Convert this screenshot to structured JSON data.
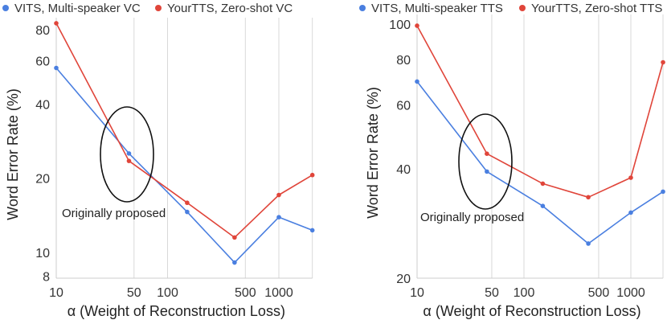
{
  "chart_data": [
    {
      "type": "line",
      "xscale": "log",
      "yscale": "log",
      "xlabel": "α (Weight of Reconstruction Loss)",
      "ylabel": "Word Error Rate (%)",
      "x_ticks": [
        "10",
        "50",
        "100",
        "500",
        "1000"
      ],
      "y_ticks": [
        "8",
        "10",
        "20",
        "40",
        "60",
        "80"
      ],
      "xlim": [
        10,
        2000
      ],
      "ylim": [
        8,
        87
      ],
      "grid": true,
      "legend_position": "top",
      "series": [
        {
          "name": "VITS, Multi-speaker VC",
          "color": "#4a7fe0",
          "x": [
            10,
            45,
            150,
            400,
            1000,
            2000
          ],
          "y": [
            56,
            25.2,
            14.6,
            9.1,
            13.9,
            12.3
          ]
        },
        {
          "name": "YourTTS, Zero-shot VC",
          "color": "#e0453a",
          "x": [
            10,
            45,
            150,
            400,
            1000,
            2000
          ],
          "y": [
            85,
            23.5,
            15.9,
            11.5,
            17.1,
            20.6
          ]
        }
      ],
      "annotations": [
        {
          "text": "Originally proposed",
          "x": 45
        }
      ]
    },
    {
      "type": "line",
      "xscale": "log",
      "yscale": "log",
      "xlabel": "α (Weight of Reconstruction Loss)",
      "ylabel": "Word Error Rate (%)",
      "x_ticks": [
        "10",
        "50",
        "100",
        "500",
        "1000"
      ],
      "y_ticks": [
        "20",
        "40",
        "60",
        "80",
        "100"
      ],
      "xlim": [
        10,
        2000
      ],
      "ylim": [
        20,
        103
      ],
      "grid": true,
      "legend_position": "top",
      "series": [
        {
          "name": "VITS, Multi-speaker TTS",
          "color": "#4a7fe0",
          "x": [
            10,
            45,
            150,
            400,
            1000,
            2000
          ],
          "y": [
            69.5,
            39.3,
            31.6,
            24.9,
            30.3,
            34.6
          ]
        },
        {
          "name": "YourTTS, Zero-shot TTS",
          "color": "#e0453a",
          "x": [
            10,
            45,
            150,
            400,
            1000,
            2000
          ],
          "y": [
            99,
            44,
            36.4,
            33.4,
            37.8,
            78.5
          ]
        }
      ],
      "annotations": [
        {
          "text": "Originally proposed",
          "x": 45
        }
      ]
    }
  ]
}
